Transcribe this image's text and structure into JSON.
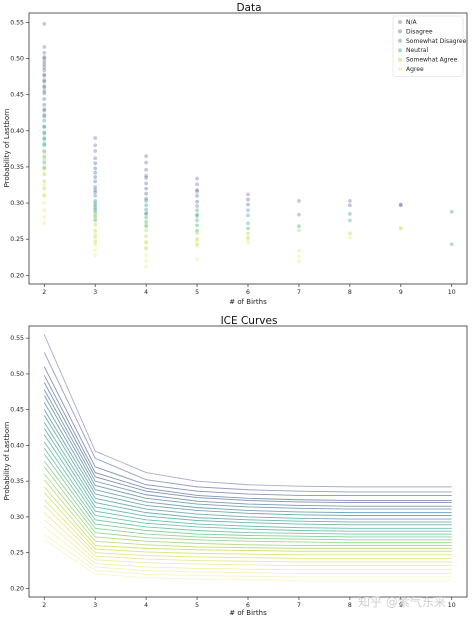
{
  "chart_data": [
    {
      "type": "scatter",
      "title": "Data",
      "xlabel": "# of Births",
      "ylabel": "Probability of Lastborn",
      "xlim": [
        1.7,
        10.3
      ],
      "ylim": [
        0.188,
        0.563
      ],
      "xticks": [
        "2",
        "3",
        "4",
        "5",
        "6",
        "7",
        "8",
        "9",
        "10"
      ],
      "yticks": [
        "0.20",
        "0.25",
        "0.30",
        "0.35",
        "0.40",
        "0.45",
        "0.50",
        "0.55"
      ],
      "legend_position": "top-right",
      "series": [
        {
          "name": "N/A",
          "color": "#6a5a9c",
          "points": [
            [
              2,
              0.548
            ],
            [
              2,
              0.516
            ],
            [
              2,
              0.508
            ],
            [
              2,
              0.502
            ],
            [
              2,
              0.496
            ],
            [
              2,
              0.488
            ],
            [
              2,
              0.478
            ],
            [
              2,
              0.47
            ],
            [
              2,
              0.462
            ],
            [
              2,
              0.455
            ],
            [
              3,
              0.39
            ],
            [
              3,
              0.38
            ],
            [
              3,
              0.372
            ],
            [
              3,
              0.362
            ],
            [
              4,
              0.365
            ],
            [
              4,
              0.356
            ],
            [
              4,
              0.346
            ],
            [
              4,
              0.338
            ],
            [
              5,
              0.334
            ],
            [
              5,
              0.326
            ],
            [
              5,
              0.316
            ],
            [
              6,
              0.312
            ],
            [
              7,
              0.303
            ],
            [
              8,
              0.303
            ],
            [
              9,
              0.297
            ]
          ]
        },
        {
          "name": "Disagree",
          "color": "#3b5e8c",
          "points": [
            [
              2,
              0.5
            ],
            [
              2,
              0.492
            ],
            [
              2,
              0.484
            ],
            [
              2,
              0.476
            ],
            [
              2,
              0.468
            ],
            [
              2,
              0.46
            ],
            [
              2,
              0.452
            ],
            [
              2,
              0.444
            ],
            [
              2,
              0.436
            ],
            [
              2,
              0.428
            ],
            [
              2,
              0.42
            ],
            [
              3,
              0.355
            ],
            [
              3,
              0.348
            ],
            [
              3,
              0.342
            ],
            [
              3,
              0.336
            ],
            [
              3,
              0.33
            ],
            [
              3,
              0.322
            ],
            [
              3,
              0.315
            ],
            [
              4,
              0.335
            ],
            [
              4,
              0.327
            ],
            [
              4,
              0.32
            ],
            [
              4,
              0.313
            ],
            [
              4,
              0.306
            ],
            [
              5,
              0.318
            ],
            [
              5,
              0.31
            ],
            [
              5,
              0.302
            ],
            [
              6,
              0.305
            ],
            [
              6,
              0.298
            ],
            [
              8,
              0.297
            ],
            [
              9,
              0.298
            ]
          ]
        },
        {
          "name": "Somewhat Disagree",
          "color": "#2a8a8c",
          "points": [
            [
              2,
              0.43
            ],
            [
              2,
              0.422
            ],
            [
              2,
              0.414
            ],
            [
              2,
              0.406
            ],
            [
              2,
              0.398
            ],
            [
              2,
              0.39
            ],
            [
              2,
              0.382
            ],
            [
              3,
              0.318
            ],
            [
              3,
              0.31
            ],
            [
              3,
              0.303
            ],
            [
              3,
              0.297
            ],
            [
              3,
              0.291
            ],
            [
              4,
              0.303
            ],
            [
              4,
              0.297
            ],
            [
              4,
              0.291
            ],
            [
              4,
              0.285
            ],
            [
              5,
              0.296
            ],
            [
              5,
              0.29
            ],
            [
              5,
              0.284
            ],
            [
              6,
              0.29
            ],
            [
              6,
              0.283
            ],
            [
              7,
              0.284
            ],
            [
              8,
              0.285
            ],
            [
              10,
              0.288
            ]
          ]
        },
        {
          "name": "Neutral",
          "color": "#25a56c",
          "points": [
            [
              2,
              0.405
            ],
            [
              2,
              0.396
            ],
            [
              2,
              0.388
            ],
            [
              2,
              0.38
            ],
            [
              2,
              0.372
            ],
            [
              2,
              0.364
            ],
            [
              2,
              0.356
            ],
            [
              2,
              0.348
            ],
            [
              3,
              0.3
            ],
            [
              3,
              0.294
            ],
            [
              3,
              0.288
            ],
            [
              3,
              0.282
            ],
            [
              3,
              0.276
            ],
            [
              4,
              0.286
            ],
            [
              4,
              0.28
            ],
            [
              4,
              0.274
            ],
            [
              4,
              0.268
            ],
            [
              5,
              0.282
            ],
            [
              5,
              0.276
            ],
            [
              5,
              0.269
            ],
            [
              5,
              0.262
            ],
            [
              6,
              0.272
            ],
            [
              6,
              0.265
            ],
            [
              7,
              0.268
            ],
            [
              8,
              0.276
            ],
            [
              10,
              0.243
            ]
          ]
        },
        {
          "name": "Somewhat Agree",
          "color": "#a8d13a",
          "points": [
            [
              2,
              0.37
            ],
            [
              2,
              0.36
            ],
            [
              2,
              0.35
            ],
            [
              2,
              0.34
            ],
            [
              2,
              0.33
            ],
            [
              2,
              0.32
            ],
            [
              2,
              0.31
            ],
            [
              3,
              0.285
            ],
            [
              3,
              0.278
            ],
            [
              3,
              0.27
            ],
            [
              3,
              0.262
            ],
            [
              3,
              0.254
            ],
            [
              3,
              0.246
            ],
            [
              4,
              0.27
            ],
            [
              4,
              0.262
            ],
            [
              4,
              0.254
            ],
            [
              4,
              0.246
            ],
            [
              4,
              0.238
            ],
            [
              5,
              0.258
            ],
            [
              5,
              0.25
            ],
            [
              5,
              0.243
            ],
            [
              6,
              0.258
            ],
            [
              6,
              0.252
            ],
            [
              7,
              0.262
            ],
            [
              8,
              0.258
            ],
            [
              9,
              0.265
            ]
          ]
        },
        {
          "name": "Agree",
          "color": "#f1e45a",
          "points": [
            [
              2,
              0.34
            ],
            [
              2,
              0.325
            ],
            [
              2,
              0.312
            ],
            [
              2,
              0.3
            ],
            [
              2,
              0.29
            ],
            [
              2,
              0.28
            ],
            [
              2,
              0.272
            ],
            [
              3,
              0.258
            ],
            [
              3,
              0.25
            ],
            [
              3,
              0.242
            ],
            [
              3,
              0.235
            ],
            [
              3,
              0.228
            ],
            [
              4,
              0.245
            ],
            [
              4,
              0.236
            ],
            [
              4,
              0.228
            ],
            [
              4,
              0.22
            ],
            [
              4,
              0.212
            ],
            [
              5,
              0.248
            ],
            [
              5,
              0.24
            ],
            [
              5,
              0.222
            ],
            [
              6,
              0.25
            ],
            [
              6,
              0.245
            ],
            [
              7,
              0.234
            ],
            [
              7,
              0.226
            ],
            [
              7,
              0.219
            ],
            [
              8,
              0.252
            ],
            [
              9,
              0.265
            ]
          ]
        }
      ]
    },
    {
      "type": "line",
      "title": "ICE Curves",
      "xlabel": "# of Births",
      "ylabel": "Probability of Lastborn",
      "x": [
        2,
        3,
        4,
        5,
        6,
        7,
        8,
        9,
        10
      ],
      "xticks": [
        "2",
        "3",
        "4",
        "5",
        "6",
        "7",
        "8",
        "9",
        "10"
      ],
      "yticks": [
        "0.20",
        "0.25",
        "0.30",
        "0.35",
        "0.40",
        "0.45",
        "0.50",
        "0.55"
      ],
      "xlim": [
        1.7,
        10.3
      ],
      "ylim": [
        0.188,
        0.567
      ],
      "series": [
        {
          "color": "#7a7fb0",
          "values": [
            0.555,
            0.392,
            0.362,
            0.35,
            0.345,
            0.343,
            0.342,
            0.342,
            0.342
          ]
        },
        {
          "color": "#5b6aa0",
          "values": [
            0.53,
            0.382,
            0.352,
            0.342,
            0.338,
            0.336,
            0.335,
            0.335,
            0.335
          ]
        },
        {
          "color": "#46598f",
          "values": [
            0.51,
            0.37,
            0.345,
            0.336,
            0.332,
            0.33,
            0.33,
            0.33,
            0.33
          ]
        },
        {
          "color": "#3e5a8e",
          "values": [
            0.498,
            0.362,
            0.34,
            0.33,
            0.326,
            0.324,
            0.323,
            0.323,
            0.323
          ]
        },
        {
          "color": "#37588b",
          "values": [
            0.488,
            0.356,
            0.336,
            0.327,
            0.323,
            0.321,
            0.32,
            0.32,
            0.32
          ]
        },
        {
          "color": "#33628c",
          "values": [
            0.478,
            0.35,
            0.331,
            0.322,
            0.318,
            0.316,
            0.315,
            0.315,
            0.315
          ]
        },
        {
          "color": "#2f6b8c",
          "values": [
            0.47,
            0.344,
            0.326,
            0.318,
            0.314,
            0.312,
            0.311,
            0.311,
            0.311
          ]
        },
        {
          "color": "#2c738c",
          "values": [
            0.46,
            0.338,
            0.321,
            0.313,
            0.309,
            0.307,
            0.306,
            0.306,
            0.306
          ]
        },
        {
          "color": "#297a8b",
          "values": [
            0.45,
            0.332,
            0.316,
            0.309,
            0.305,
            0.303,
            0.302,
            0.302,
            0.302
          ]
        },
        {
          "color": "#26828a",
          "values": [
            0.442,
            0.326,
            0.311,
            0.304,
            0.3,
            0.298,
            0.297,
            0.297,
            0.297
          ]
        },
        {
          "color": "#238a89",
          "values": [
            0.432,
            0.32,
            0.306,
            0.299,
            0.296,
            0.294,
            0.293,
            0.293,
            0.293
          ]
        },
        {
          "color": "#219286",
          "values": [
            0.424,
            0.314,
            0.301,
            0.295,
            0.292,
            0.29,
            0.289,
            0.289,
            0.289
          ]
        },
        {
          "color": "#229a82",
          "values": [
            0.415,
            0.308,
            0.296,
            0.29,
            0.287,
            0.285,
            0.284,
            0.284,
            0.284
          ]
        },
        {
          "color": "#28a37c",
          "values": [
            0.405,
            0.302,
            0.291,
            0.286,
            0.283,
            0.281,
            0.28,
            0.28,
            0.28
          ]
        },
        {
          "color": "#33ab74",
          "values": [
            0.396,
            0.296,
            0.286,
            0.281,
            0.278,
            0.277,
            0.276,
            0.276,
            0.276
          ]
        },
        {
          "color": "#43b36a",
          "values": [
            0.388,
            0.29,
            0.281,
            0.276,
            0.274,
            0.273,
            0.272,
            0.272,
            0.272
          ]
        },
        {
          "color": "#56ba5e",
          "values": [
            0.378,
            0.284,
            0.276,
            0.272,
            0.27,
            0.269,
            0.268,
            0.268,
            0.268
          ]
        },
        {
          "color": "#6cc152",
          "values": [
            0.37,
            0.278,
            0.271,
            0.268,
            0.266,
            0.265,
            0.264,
            0.264,
            0.264
          ]
        },
        {
          "color": "#84c745",
          "values": [
            0.36,
            0.272,
            0.266,
            0.263,
            0.261,
            0.26,
            0.26,
            0.26,
            0.26
          ]
        },
        {
          "color": "#9dcc3a",
          "values": [
            0.352,
            0.266,
            0.261,
            0.258,
            0.257,
            0.256,
            0.256,
            0.256,
            0.256
          ]
        },
        {
          "color": "#b4d033",
          "values": [
            0.342,
            0.26,
            0.256,
            0.254,
            0.253,
            0.252,
            0.252,
            0.252,
            0.252
          ]
        },
        {
          "color": "#c9d43a",
          "values": [
            0.334,
            0.255,
            0.251,
            0.249,
            0.248,
            0.247,
            0.247,
            0.247,
            0.247
          ]
        },
        {
          "color": "#d9d84a",
          "values": [
            0.324,
            0.25,
            0.246,
            0.244,
            0.243,
            0.242,
            0.242,
            0.242,
            0.242
          ]
        },
        {
          "color": "#e4dc5d",
          "values": [
            0.316,
            0.245,
            0.241,
            0.239,
            0.238,
            0.237,
            0.237,
            0.237,
            0.237
          ]
        },
        {
          "color": "#ebe070",
          "values": [
            0.306,
            0.24,
            0.236,
            0.234,
            0.233,
            0.232,
            0.232,
            0.232,
            0.232
          ]
        },
        {
          "color": "#efe583",
          "values": [
            0.296,
            0.235,
            0.23,
            0.228,
            0.227,
            0.226,
            0.226,
            0.226,
            0.226
          ]
        },
        {
          "color": "#f2ea96",
          "values": [
            0.286,
            0.23,
            0.225,
            0.223,
            0.222,
            0.221,
            0.221,
            0.221,
            0.221
          ]
        },
        {
          "color": "#f4eea8",
          "values": [
            0.276,
            0.225,
            0.22,
            0.218,
            0.217,
            0.216,
            0.216,
            0.216,
            0.216
          ]
        },
        {
          "color": "#f5f0b5",
          "values": [
            0.268,
            0.22,
            0.215,
            0.213,
            0.212,
            0.211,
            0.211,
            0.211,
            0.211
          ]
        }
      ]
    }
  ],
  "watermark": "知乎 @紫气东来"
}
